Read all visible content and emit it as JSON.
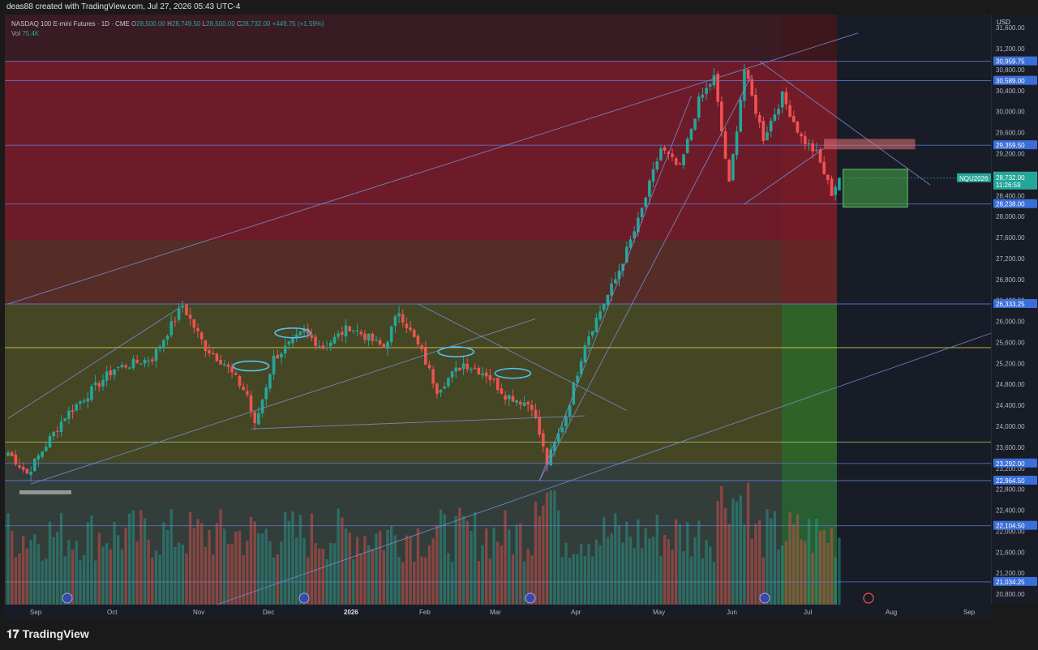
{
  "header": {
    "created_by": "deas88 created with TradingView.com, Jul 27, 2026 05:43 UTC-4"
  },
  "legend": {
    "symbol": "NASDAQ 100 E-mini Futures · 1D · CME",
    "o_label": "O",
    "o_value": "28,500.00",
    "h_label": "H",
    "h_value": "28,749.50",
    "l_label": "L",
    "l_value": "28,500.00",
    "c_label": "C",
    "c_value": "28,732.00",
    "change": "+449.75 (+1.59%)",
    "vol_label": "Vol",
    "vol_value": "75.4K"
  },
  "currency": "USD",
  "footer": {
    "brand": "TradingView"
  },
  "price_badge": {
    "symbol": "NQU2026",
    "price": "28,732.00",
    "countdown": "11:26:59"
  },
  "chart_data": {
    "type": "candlestick",
    "title": "NASDAQ 100 E-mini Futures · 1D · CME",
    "ylim": [
      20600,
      31850
    ],
    "y_ticks": [
      20800,
      21200,
      21600,
      22000,
      22400,
      22800,
      23200,
      23600,
      24000,
      24400,
      24800,
      25200,
      25600,
      26000,
      26400,
      26800,
      27200,
      27600,
      28000,
      28400,
      28800,
      29200,
      29600,
      30000,
      30400,
      30800,
      31200,
      31600
    ],
    "x_labels": [
      "Sep",
      "Oct",
      "Nov",
      "Dec",
      "2026",
      "Feb",
      "Mar",
      "Apr",
      "May",
      "Jun",
      "Jul",
      "Aug",
      "Sep"
    ],
    "price_levels": [
      {
        "price": 30959.75,
        "label": "30,959.75"
      },
      {
        "price": 30589.0,
        "label": "30,589.00"
      },
      {
        "price": 29359.5,
        "label": "29,359.50"
      },
      {
        "price": 28238.0,
        "label": "28,238.00"
      },
      {
        "price": 26333.25,
        "label": "26,333.25"
      },
      {
        "price": 25500.0
      },
      {
        "price": 23700.0
      },
      {
        "price": 23292.0,
        "label": "23,292.00"
      },
      {
        "price": 22964.5,
        "label": "22,964.50"
      },
      {
        "price": 22104.5,
        "label": "22,104.50"
      },
      {
        "price": 21034.25,
        "label": "21,034.25"
      }
    ],
    "zones": [
      {
        "name": "red",
        "from": 27550,
        "to": 30959.75,
        "color": "#b71c2c"
      },
      {
        "name": "orange",
        "from": 26333.25,
        "to": 27550,
        "color": "#8a3a26"
      },
      {
        "name": "olive",
        "from": 23292,
        "to": 26333.25,
        "color": "#6b6a22"
      },
      {
        "name": "grey",
        "from": 20600,
        "to": 23292,
        "color": "#4a5a4a"
      }
    ],
    "anchors": [
      {
        "t": 0,
        "p": 23500
      },
      {
        "t": 5,
        "p": 23100
      },
      {
        "t": 15,
        "p": 24200
      },
      {
        "t": 28,
        "p": 25100
      },
      {
        "t": 38,
        "p": 25300
      },
      {
        "t": 46,
        "p": 26300
      },
      {
        "t": 52,
        "p": 25500
      },
      {
        "t": 57,
        "p": 25200
      },
      {
        "t": 63,
        "p": 24600
      },
      {
        "t": 65,
        "p": 24000
      },
      {
        "t": 70,
        "p": 25300
      },
      {
        "t": 78,
        "p": 25800
      },
      {
        "t": 83,
        "p": 25500
      },
      {
        "t": 90,
        "p": 25900
      },
      {
        "t": 99,
        "p": 25500
      },
      {
        "t": 103,
        "p": 26200
      },
      {
        "t": 109,
        "p": 25400
      },
      {
        "t": 113,
        "p": 24700
      },
      {
        "t": 120,
        "p": 25200
      },
      {
        "t": 126,
        "p": 25000
      },
      {
        "t": 131,
        "p": 24600
      },
      {
        "t": 138,
        "p": 24400
      },
      {
        "t": 142,
        "p": 23300
      },
      {
        "t": 147,
        "p": 24200
      },
      {
        "t": 152,
        "p": 25600
      },
      {
        "t": 160,
        "p": 26800
      },
      {
        "t": 166,
        "p": 27900
      },
      {
        "t": 172,
        "p": 29300
      },
      {
        "t": 177,
        "p": 28900
      },
      {
        "t": 182,
        "p": 30200
      },
      {
        "t": 186,
        "p": 30650
      },
      {
        "t": 190,
        "p": 28600
      },
      {
        "t": 194,
        "p": 30800
      },
      {
        "t": 199,
        "p": 29500
      },
      {
        "t": 204,
        "p": 30300
      },
      {
        "t": 209,
        "p": 29500
      },
      {
        "t": 213,
        "p": 29200
      },
      {
        "t": 217,
        "p": 28450
      },
      {
        "t": 219,
        "p": 28732
      }
    ],
    "last": {
      "open": 28500.0,
      "high": 28749.5,
      "low": 28500.0,
      "close": 28732.0,
      "volume": "75.4K"
    }
  }
}
